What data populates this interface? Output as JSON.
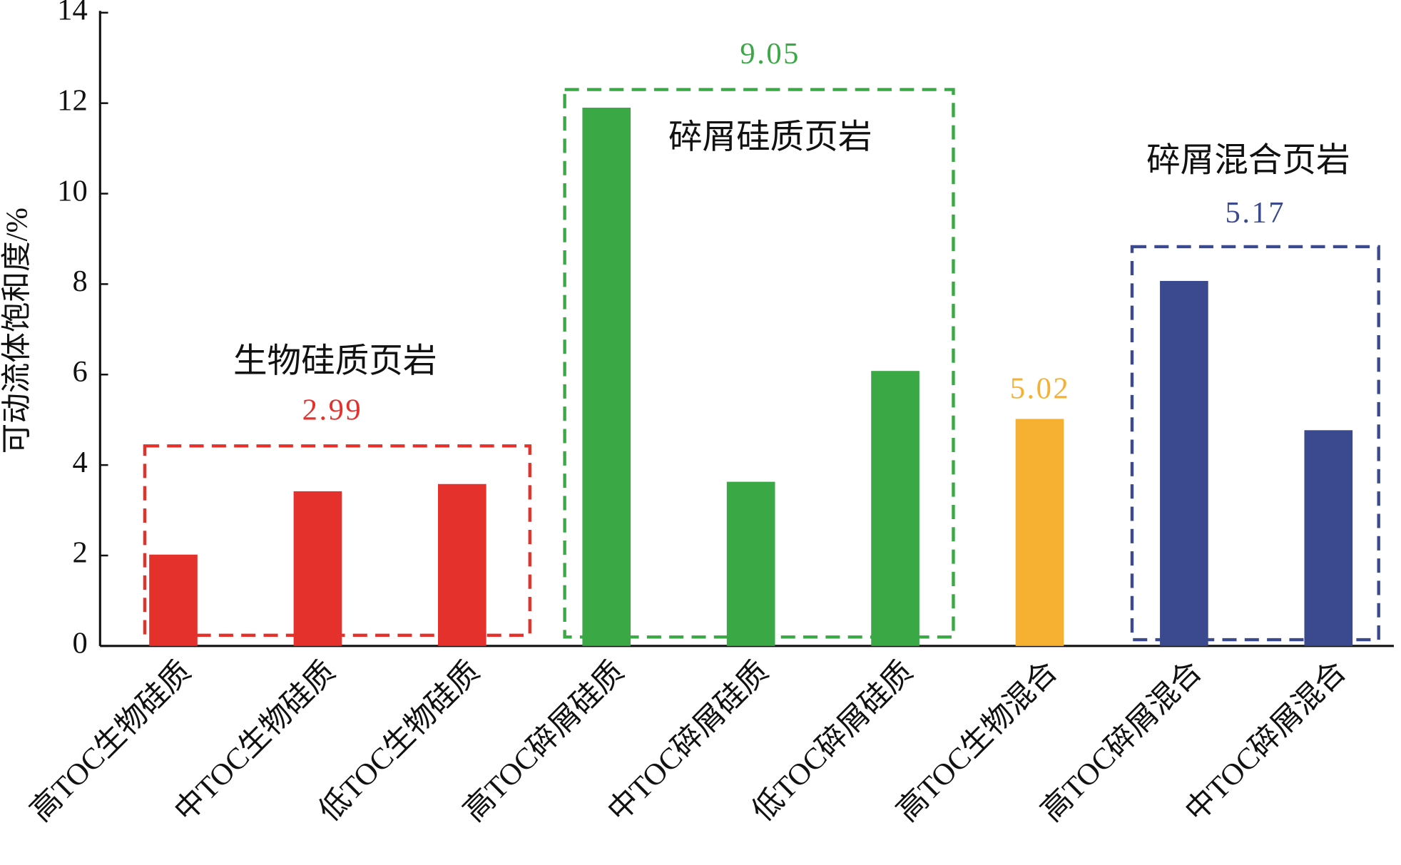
{
  "chart_data": {
    "type": "bar",
    "y_label": "可动流体饱和度/%",
    "categories": [
      "高TOC生物硅质",
      "中TOC生物硅质",
      "低TOC生物硅质",
      "高TOC碎屑硅质",
      "中TOC碎屑硅质",
      "低TOC碎屑硅质",
      "高TOC生物混合",
      "高TOC碎屑混合",
      "中TOC碎屑混合"
    ],
    "values": [
      2.02,
      3.42,
      3.58,
      11.9,
      3.63,
      6.08,
      5.02,
      8.07,
      4.77
    ],
    "colors": [
      "#e4312b",
      "#e4312b",
      "#e4312b",
      "#3aa845",
      "#3aa845",
      "#3aa845",
      "#f6b132",
      "#3b4a8e",
      "#3b4a8e"
    ],
    "groups": [
      {
        "label": "生物硅质页岩",
        "value": 2.99,
        "color": "#e4312b"
      },
      {
        "label": "碎屑硅质页岩",
        "value": 9.05,
        "color": "#3aa845"
      },
      {
        "value": 5.02,
        "color": "#f6b132"
      },
      {
        "label": "碎屑混合页岩",
        "value": 5.17,
        "color": "#3b4a8e"
      }
    ],
    "ylim": [
      0,
      14
    ],
    "yticks": [
      0,
      2,
      4,
      6,
      8,
      10,
      12,
      14
    ]
  }
}
